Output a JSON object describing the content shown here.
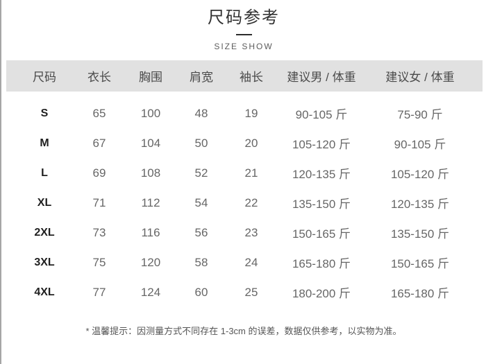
{
  "page": {
    "title": "尺码参考",
    "subtitle": "SIZE SHOW"
  },
  "table": {
    "headers": [
      "尺码",
      "衣长",
      "胸围",
      "肩宽",
      "袖长",
      "建议男 / 体重",
      "建议女 / 体重"
    ],
    "rows": [
      [
        "S",
        "65",
        "100",
        "48",
        "19",
        "90-105 斤",
        "75-90 斤"
      ],
      [
        "M",
        "67",
        "104",
        "50",
        "20",
        "105-120 斤",
        "90-105 斤"
      ],
      [
        "L",
        "69",
        "108",
        "52",
        "21",
        "120-135 斤",
        "105-120 斤"
      ],
      [
        "XL",
        "71",
        "112",
        "54",
        "22",
        "135-150 斤",
        "120-135 斤"
      ],
      [
        "2XL",
        "73",
        "116",
        "56",
        "23",
        "150-165 斤",
        "135-150 斤"
      ],
      [
        "3XL",
        "75",
        "120",
        "58",
        "24",
        "165-180 斤",
        "150-165 斤"
      ],
      [
        "4XL",
        "77",
        "124",
        "60",
        "25",
        "180-200 斤",
        "165-180 斤"
      ]
    ],
    "footnote": "* 温馨提示：因测量方式不同存在 1-3cm 的误差，数据仅供参考，以实物为准。"
  },
  "colors": {
    "header_row_bg": "#e1e1e1",
    "title_text": "#333333",
    "body_text": "#666666",
    "size_label_text": "#1f1f1f",
    "divider": "#2b2b2b",
    "left_border": "#a6a6a6"
  }
}
